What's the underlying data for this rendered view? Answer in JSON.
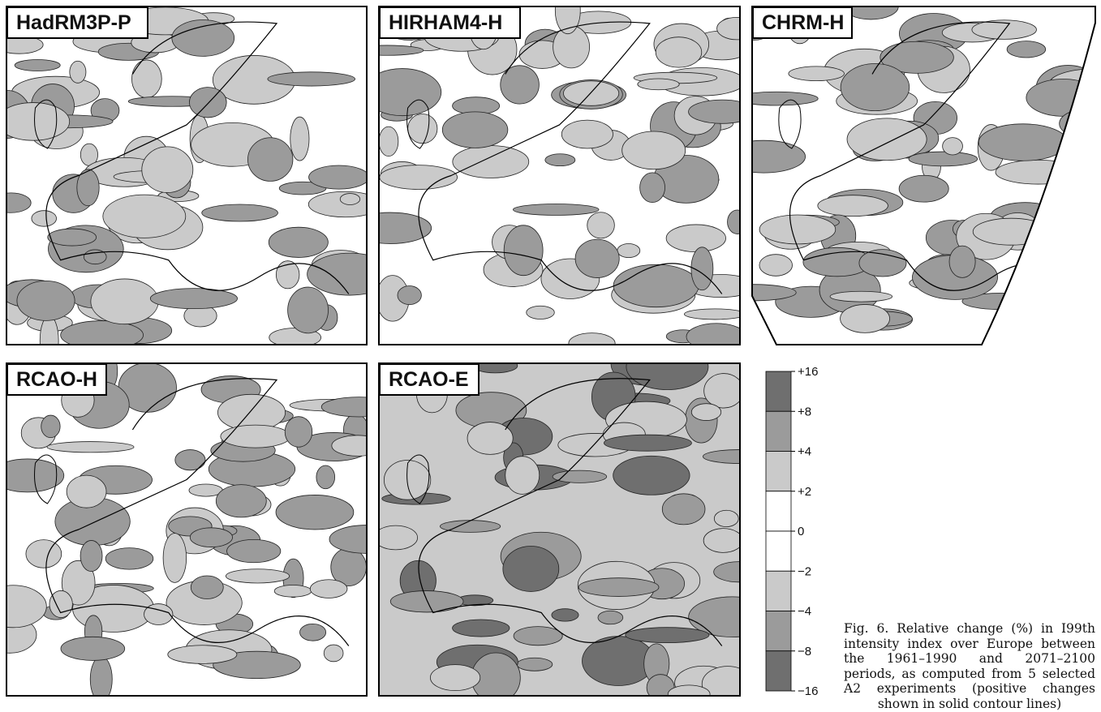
{
  "panels": [
    {
      "label": "HadRM3P-P"
    },
    {
      "label": "HIRHAM4-H"
    },
    {
      "label": "CHRM-H"
    },
    {
      "label": "RCAO-H"
    },
    {
      "label": "RCAO-E"
    }
  ],
  "legend": {
    "labels": [
      "+16",
      "+8",
      "+4",
      "+2",
      "0",
      "−2",
      "−4",
      "−8",
      "−16"
    ],
    "colors": [
      "#6f6f6f",
      "#9b9b9b",
      "#cacaca",
      "#ffffff",
      "#ffffff",
      "#cacaca",
      "#9b9b9b",
      "#6f6f6f"
    ]
  },
  "caption": "Fig. 6. Relative change (%) in I99th intensity index over Europe between the 1961–1990 and 2071–2100 periods, as computed from 5 selected A2 experiments (positive changes shown in solid contour lines)"
}
